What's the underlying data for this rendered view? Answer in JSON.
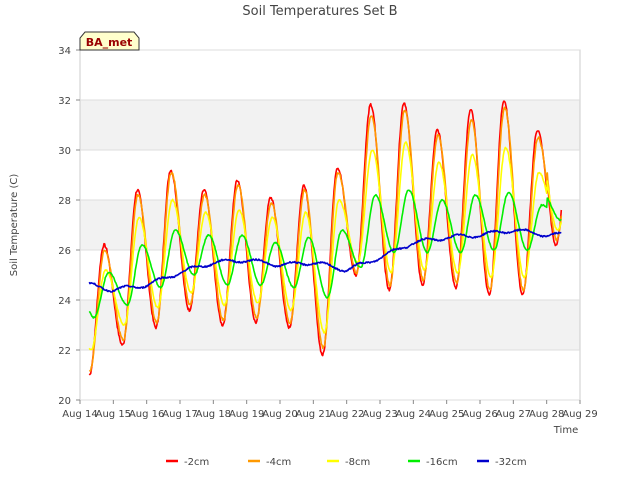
{
  "chart_data": {
    "type": "line",
    "title": "Soil Temperatures Set B",
    "xlabel": "Time",
    "ylabel": "Soil Temperature (C)",
    "site_label": "BA_met",
    "x_ticks": [
      "Aug 14",
      "Aug 15",
      "Aug 16",
      "Aug 17",
      "Aug 18",
      "Aug 19",
      "Aug 20",
      "Aug 21",
      "Aug 22",
      "Aug 23",
      "Aug 24",
      "Aug 25",
      "Aug 26",
      "Aug 27",
      "Aug 28",
      "Aug 29"
    ],
    "xlim": [
      "Aug 14",
      "Aug 29"
    ],
    "ylim": [
      20,
      34
    ],
    "y_ticks": [
      20,
      22,
      24,
      26,
      28,
      30,
      32,
      34
    ],
    "grid": true,
    "legend_position": "bottom",
    "series_x_dates": [
      "Aug 14",
      "Aug 15",
      "Aug 16",
      "Aug 17",
      "Aug 18",
      "Aug 19",
      "Aug 20",
      "Aug 21",
      "Aug 22",
      "Aug 23",
      "Aug 24",
      "Aug 25",
      "Aug 26",
      "Aug 27",
      "Aug 28"
    ],
    "series": [
      {
        "name": "-2cm",
        "color": "#ff0000",
        "daily_min": [
          21.0,
          22.2,
          22.9,
          23.6,
          23.0,
          23.1,
          22.9,
          21.8,
          25.0,
          24.4,
          24.6,
          24.5,
          24.2,
          24.2,
          26.2
        ],
        "daily_max": [
          26.2,
          28.4,
          29.2,
          28.4,
          28.8,
          28.1,
          28.6,
          29.3,
          31.8,
          31.9,
          30.8,
          31.6,
          32.0,
          30.8
        ]
      },
      {
        "name": "-4cm",
        "color": "#ff9900",
        "daily_min": [
          21.2,
          22.4,
          23.1,
          23.8,
          23.2,
          23.3,
          23.1,
          22.1,
          25.1,
          24.6,
          24.8,
          24.7,
          24.4,
          24.4,
          26.4
        ],
        "daily_max": [
          26.0,
          28.2,
          29.1,
          28.2,
          28.6,
          27.9,
          28.4,
          29.1,
          31.4,
          31.6,
          30.6,
          31.2,
          31.7,
          30.5
        ]
      },
      {
        "name": "-8cm",
        "color": "#ffff00",
        "daily_min": [
          22.0,
          23.0,
          23.7,
          24.3,
          23.8,
          23.9,
          23.6,
          22.7,
          25.5,
          25.1,
          25.2,
          25.1,
          24.9,
          24.9,
          26.8
        ],
        "daily_max": [
          25.2,
          27.3,
          28.0,
          27.5,
          27.6,
          27.3,
          27.5,
          28.0,
          30.0,
          30.3,
          29.5,
          29.8,
          30.1,
          29.1
        ]
      },
      {
        "name": "-16cm",
        "color": "#00ee00",
        "daily_min": [
          23.3,
          23.8,
          24.5,
          25.0,
          24.6,
          24.6,
          24.5,
          24.1,
          25.3,
          25.9,
          25.9,
          25.9,
          26.0,
          26.0,
          27.2
        ],
        "daily_max": [
          25.1,
          26.2,
          26.8,
          26.6,
          26.6,
          26.3,
          26.5,
          26.8,
          28.2,
          28.4,
          28.0,
          28.2,
          28.3,
          27.8
        ]
      },
      {
        "name": "-32cm",
        "color": "#0000cc",
        "values": [
          24.7,
          24.4,
          24.6,
          25.1,
          25.5,
          25.6,
          25.4,
          25.5,
          25.2,
          25.7,
          26.3,
          26.5,
          26.6,
          26.8,
          26.6,
          26.6
        ]
      }
    ]
  }
}
